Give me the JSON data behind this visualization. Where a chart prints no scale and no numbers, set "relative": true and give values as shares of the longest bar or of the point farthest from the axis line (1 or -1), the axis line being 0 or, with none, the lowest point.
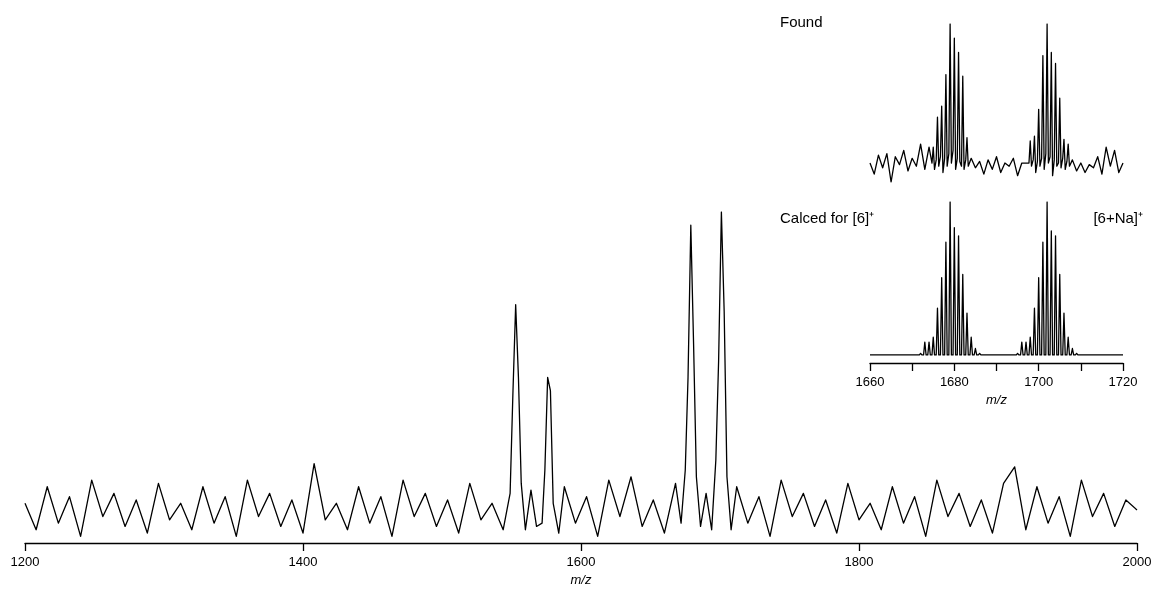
{
  "chart_data": [
    {
      "type": "line",
      "xlabel": "m/z",
      "relative": true,
      "xlim": [
        1200,
        2000
      ],
      "xticks": [
        1200,
        1400,
        1600,
        1800,
        2000
      ],
      "series": [
        {
          "color": "#000000",
          "x": [
            1200,
            1208,
            1216,
            1224,
            1232,
            1240,
            1248,
            1256,
            1264,
            1272,
            1280,
            1288,
            1296,
            1304,
            1312,
            1320,
            1328,
            1336,
            1344,
            1352,
            1360,
            1368,
            1376,
            1384,
            1392,
            1400,
            1408,
            1416,
            1424,
            1432,
            1440,
            1448,
            1456,
            1464,
            1472,
            1480,
            1488,
            1496,
            1504,
            1512,
            1520,
            1528,
            1536,
            1544,
            1549,
            1551,
            1553,
            1555,
            1557,
            1560,
            1564,
            1568,
            1572,
            1574,
            1576,
            1578,
            1580,
            1584,
            1588,
            1596,
            1604,
            1612,
            1620,
            1628,
            1636,
            1644,
            1652,
            1660,
            1668,
            1672,
            1675,
            1677,
            1679,
            1681,
            1683,
            1686,
            1690,
            1694,
            1697,
            1699,
            1701,
            1703,
            1705,
            1708,
            1712,
            1720,
            1728,
            1736,
            1744,
            1752,
            1760,
            1768,
            1776,
            1784,
            1792,
            1800,
            1808,
            1816,
            1824,
            1832,
            1840,
            1848,
            1856,
            1864,
            1872,
            1880,
            1888,
            1896,
            1904,
            1912,
            1920,
            1928,
            1936,
            1944,
            1952,
            1960,
            1968,
            1976,
            1984,
            1992,
            2000
          ],
          "values": [
            0.12,
            0.04,
            0.17,
            0.06,
            0.14,
            0.02,
            0.19,
            0.08,
            0.15,
            0.05,
            0.13,
            0.03,
            0.18,
            0.07,
            0.12,
            0.04,
            0.17,
            0.06,
            0.14,
            0.02,
            0.19,
            0.08,
            0.15,
            0.05,
            0.13,
            0.03,
            0.24,
            0.07,
            0.12,
            0.04,
            0.17,
            0.06,
            0.14,
            0.02,
            0.19,
            0.08,
            0.15,
            0.05,
            0.13,
            0.03,
            0.18,
            0.07,
            0.12,
            0.04,
            0.15,
            0.45,
            0.72,
            0.5,
            0.18,
            0.04,
            0.16,
            0.05,
            0.06,
            0.22,
            0.5,
            0.46,
            0.12,
            0.03,
            0.17,
            0.06,
            0.14,
            0.02,
            0.19,
            0.08,
            0.2,
            0.05,
            0.13,
            0.03,
            0.18,
            0.06,
            0.22,
            0.5,
            0.96,
            0.6,
            0.2,
            0.05,
            0.15,
            0.04,
            0.25,
            0.55,
            1.0,
            0.7,
            0.2,
            0.04,
            0.17,
            0.06,
            0.14,
            0.02,
            0.19,
            0.08,
            0.15,
            0.05,
            0.13,
            0.03,
            0.18,
            0.07,
            0.12,
            0.04,
            0.17,
            0.06,
            0.14,
            0.02,
            0.19,
            0.08,
            0.15,
            0.05,
            0.13,
            0.03,
            0.18,
            0.23,
            0.04,
            0.17,
            0.06,
            0.14,
            0.02,
            0.19,
            0.08,
            0.15,
            0.05,
            0.13,
            0.1
          ]
        }
      ]
    },
    {
      "type": "line",
      "relative": true,
      "xlim": [
        1660,
        1720
      ],
      "tick_labels": false,
      "annotations": [
        "Found"
      ],
      "series": [
        {
          "color": "#000000",
          "x": [
            1660,
            1661,
            1662,
            1663,
            1664,
            1665,
            1666,
            1667,
            1668,
            1669,
            1670,
            1671,
            1672,
            1673,
            1674,
            1674.7,
            1675,
            1675.3,
            1675.7,
            1676,
            1676.3,
            1676.7,
            1677,
            1677.3,
            1677.7,
            1678,
            1678.3,
            1678.7,
            1679,
            1679.3,
            1679.7,
            1680,
            1680.3,
            1680.7,
            1681,
            1681.3,
            1681.7,
            1682,
            1682.3,
            1682.7,
            1683,
            1683.3,
            1684,
            1685,
            1686,
            1687,
            1688,
            1689,
            1690,
            1691,
            1692,
            1693,
            1694,
            1695,
            1696,
            1697.7,
            1698,
            1698.3,
            1698.7,
            1699,
            1699.3,
            1699.7,
            1700,
            1700.3,
            1700.7,
            1701,
            1701.3,
            1701.7,
            1702,
            1702.3,
            1702.7,
            1703,
            1703.3,
            1703.7,
            1704,
            1704.3,
            1704.7,
            1705,
            1705.3,
            1705.7,
            1706,
            1706.3,
            1706.7,
            1707,
            1707.3,
            1708,
            1709,
            1710,
            1711,
            1712,
            1713,
            1714,
            1715,
            1716,
            1717,
            1718,
            1719,
            1720
          ],
          "values": [
            0.12,
            0.05,
            0.17,
            0.09,
            0.18,
            0.0,
            0.16,
            0.11,
            0.2,
            0.07,
            0.15,
            0.1,
            0.24,
            0.08,
            0.22,
            0.12,
            0.22,
            0.08,
            0.14,
            0.41,
            0.1,
            0.16,
            0.48,
            0.06,
            0.15,
            0.68,
            0.1,
            0.18,
            1.0,
            0.12,
            0.2,
            0.91,
            0.08,
            0.15,
            0.82,
            0.13,
            0.1,
            0.67,
            0.08,
            0.14,
            0.28,
            0.1,
            0.15,
            0.09,
            0.13,
            0.05,
            0.14,
            0.08,
            0.16,
            0.06,
            0.12,
            0.1,
            0.15,
            0.04,
            0.12,
            0.12,
            0.26,
            0.1,
            0.14,
            0.29,
            0.06,
            0.13,
            0.46,
            0.1,
            0.15,
            0.8,
            0.08,
            0.18,
            1.0,
            0.12,
            0.16,
            0.82,
            0.04,
            0.14,
            0.75,
            0.1,
            0.12,
            0.53,
            0.09,
            0.15,
            0.27,
            0.08,
            0.13,
            0.24,
            0.1,
            0.14,
            0.07,
            0.12,
            0.06,
            0.11,
            0.09,
            0.16,
            0.05,
            0.22,
            0.1,
            0.2,
            0.06,
            0.12
          ]
        }
      ]
    },
    {
      "type": "line",
      "xlabel": "m/z",
      "relative": true,
      "xlim": [
        1660,
        1720
      ],
      "xticks": [
        1660,
        {
          "value": 1670,
          "label": null
        },
        1680,
        {
          "value": 1690,
          "label": null
        },
        1700,
        {
          "value": 1710,
          "label": null
        },
        1720
      ],
      "annotations": [
        "Calced for [6]⁺",
        "[6+Na]⁺"
      ],
      "series": [
        {
          "color": "#000000",
          "x": [
            1660,
            1671.7,
            1672,
            1672.3,
            1672.7,
            1673,
            1673.3,
            1673.7,
            1674,
            1674.3,
            1674.7,
            1675,
            1675.3,
            1675.7,
            1676,
            1676.3,
            1676.7,
            1677,
            1677.3,
            1677.7,
            1678,
            1678.3,
            1678.7,
            1679,
            1679.3,
            1679.7,
            1680,
            1680.3,
            1680.7,
            1681,
            1681.3,
            1681.7,
            1682,
            1682.3,
            1682.7,
            1683,
            1683.3,
            1683.7,
            1684,
            1684.3,
            1684.7,
            1685,
            1685.3,
            1685.7,
            1686,
            1686.3,
            1694.7,
            1695,
            1695.3,
            1695.7,
            1696,
            1696.3,
            1696.7,
            1697,
            1697.3,
            1697.7,
            1698,
            1698.3,
            1698.7,
            1699,
            1699.3,
            1699.7,
            1700,
            1700.3,
            1700.7,
            1701,
            1701.3,
            1701.7,
            1702,
            1702.3,
            1702.7,
            1703,
            1703.3,
            1703.7,
            1704,
            1704.3,
            1704.7,
            1705,
            1705.3,
            1705.7,
            1706,
            1706.3,
            1706.7,
            1707,
            1707.3,
            1707.7,
            1708,
            1708.3,
            1708.7,
            1709,
            1709.3,
            1720
          ],
          "values": [
            0.05,
            0.05,
            0.06,
            0.05,
            0.05,
            0.13,
            0.05,
            0.05,
            0.13,
            0.05,
            0.05,
            0.16,
            0.05,
            0.05,
            0.34,
            0.05,
            0.05,
            0.53,
            0.05,
            0.05,
            0.75,
            0.05,
            0.05,
            1.0,
            0.05,
            0.05,
            0.84,
            0.05,
            0.05,
            0.79,
            0.05,
            0.05,
            0.55,
            0.05,
            0.05,
            0.31,
            0.05,
            0.05,
            0.16,
            0.05,
            0.05,
            0.09,
            0.05,
            0.05,
            0.06,
            0.05,
            0.05,
            0.06,
            0.05,
            0.05,
            0.13,
            0.05,
            0.05,
            0.13,
            0.05,
            0.05,
            0.16,
            0.05,
            0.05,
            0.34,
            0.05,
            0.05,
            0.53,
            0.05,
            0.05,
            0.75,
            0.05,
            0.05,
            1.0,
            0.05,
            0.05,
            0.82,
            0.05,
            0.05,
            0.79,
            0.05,
            0.05,
            0.55,
            0.05,
            0.05,
            0.31,
            0.05,
            0.05,
            0.16,
            0.05,
            0.05,
            0.09,
            0.05,
            0.05,
            0.06,
            0.05,
            0.05
          ]
        }
      ]
    }
  ]
}
